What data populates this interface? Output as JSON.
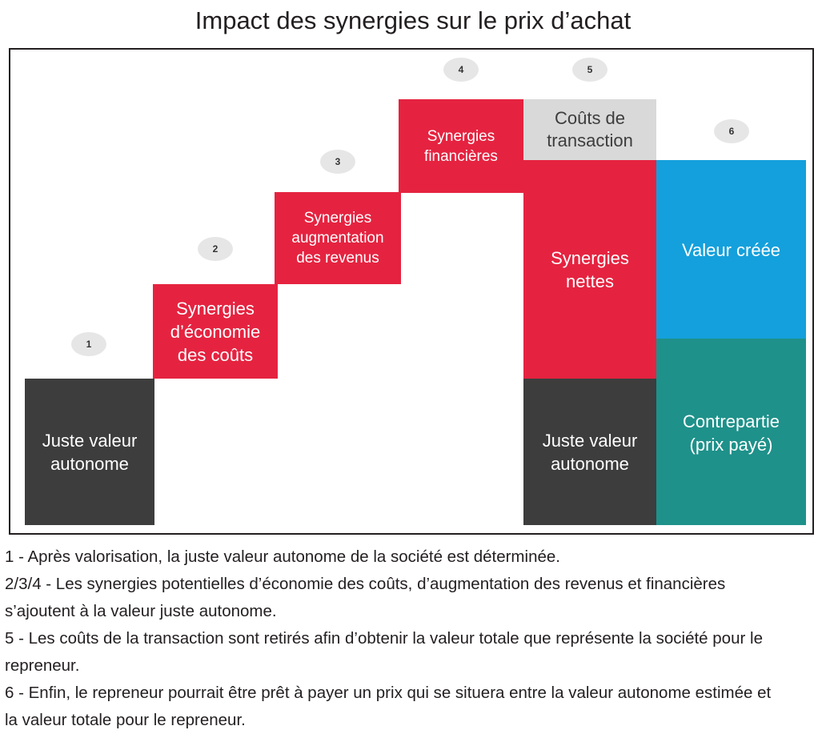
{
  "title": "Impact des synergies sur le prix d’achat",
  "blocks": {
    "juste_valeur_1": "Juste valeur autonome",
    "syn_couts": "Synergies d’économie des coûts",
    "syn_revenus": "Synergies augmentation des revenus",
    "syn_financieres": "Synergies financières",
    "couts_transaction": "Coûts de transaction",
    "syn_nettes": "Synergies nettes",
    "juste_valeur_2": "Juste valeur autonome",
    "valeur_creee": "Valeur créée",
    "contrepartie": "Contrepartie (prix payé)"
  },
  "badges": [
    "1",
    "2",
    "3",
    "4",
    "5",
    "6"
  ],
  "notes": [
    "1 - Après valorisation, la juste valeur autonome de la société est déterminée.",
    "2/3/4 - Les synergies potentielles d’économie des coûts, d’augmentation des revenus et financières s’ajoutent à la valeur juste autonome.",
    "5 - Les coûts de la transaction sont retirés afin d’obtenir la valeur totale que représente la société pour le repreneur.",
    "6 - Enfin, le repreneur pourrait être prêt à payer un prix qui se situera entre la valeur autonome estimée et la valeur totale pour le repreneur."
  ],
  "colors": {
    "dark": "#3d3d3d",
    "red": "#e52340",
    "gray": "#d9d9d9",
    "blue": "#14a0dc",
    "teal": "#1e918a"
  }
}
